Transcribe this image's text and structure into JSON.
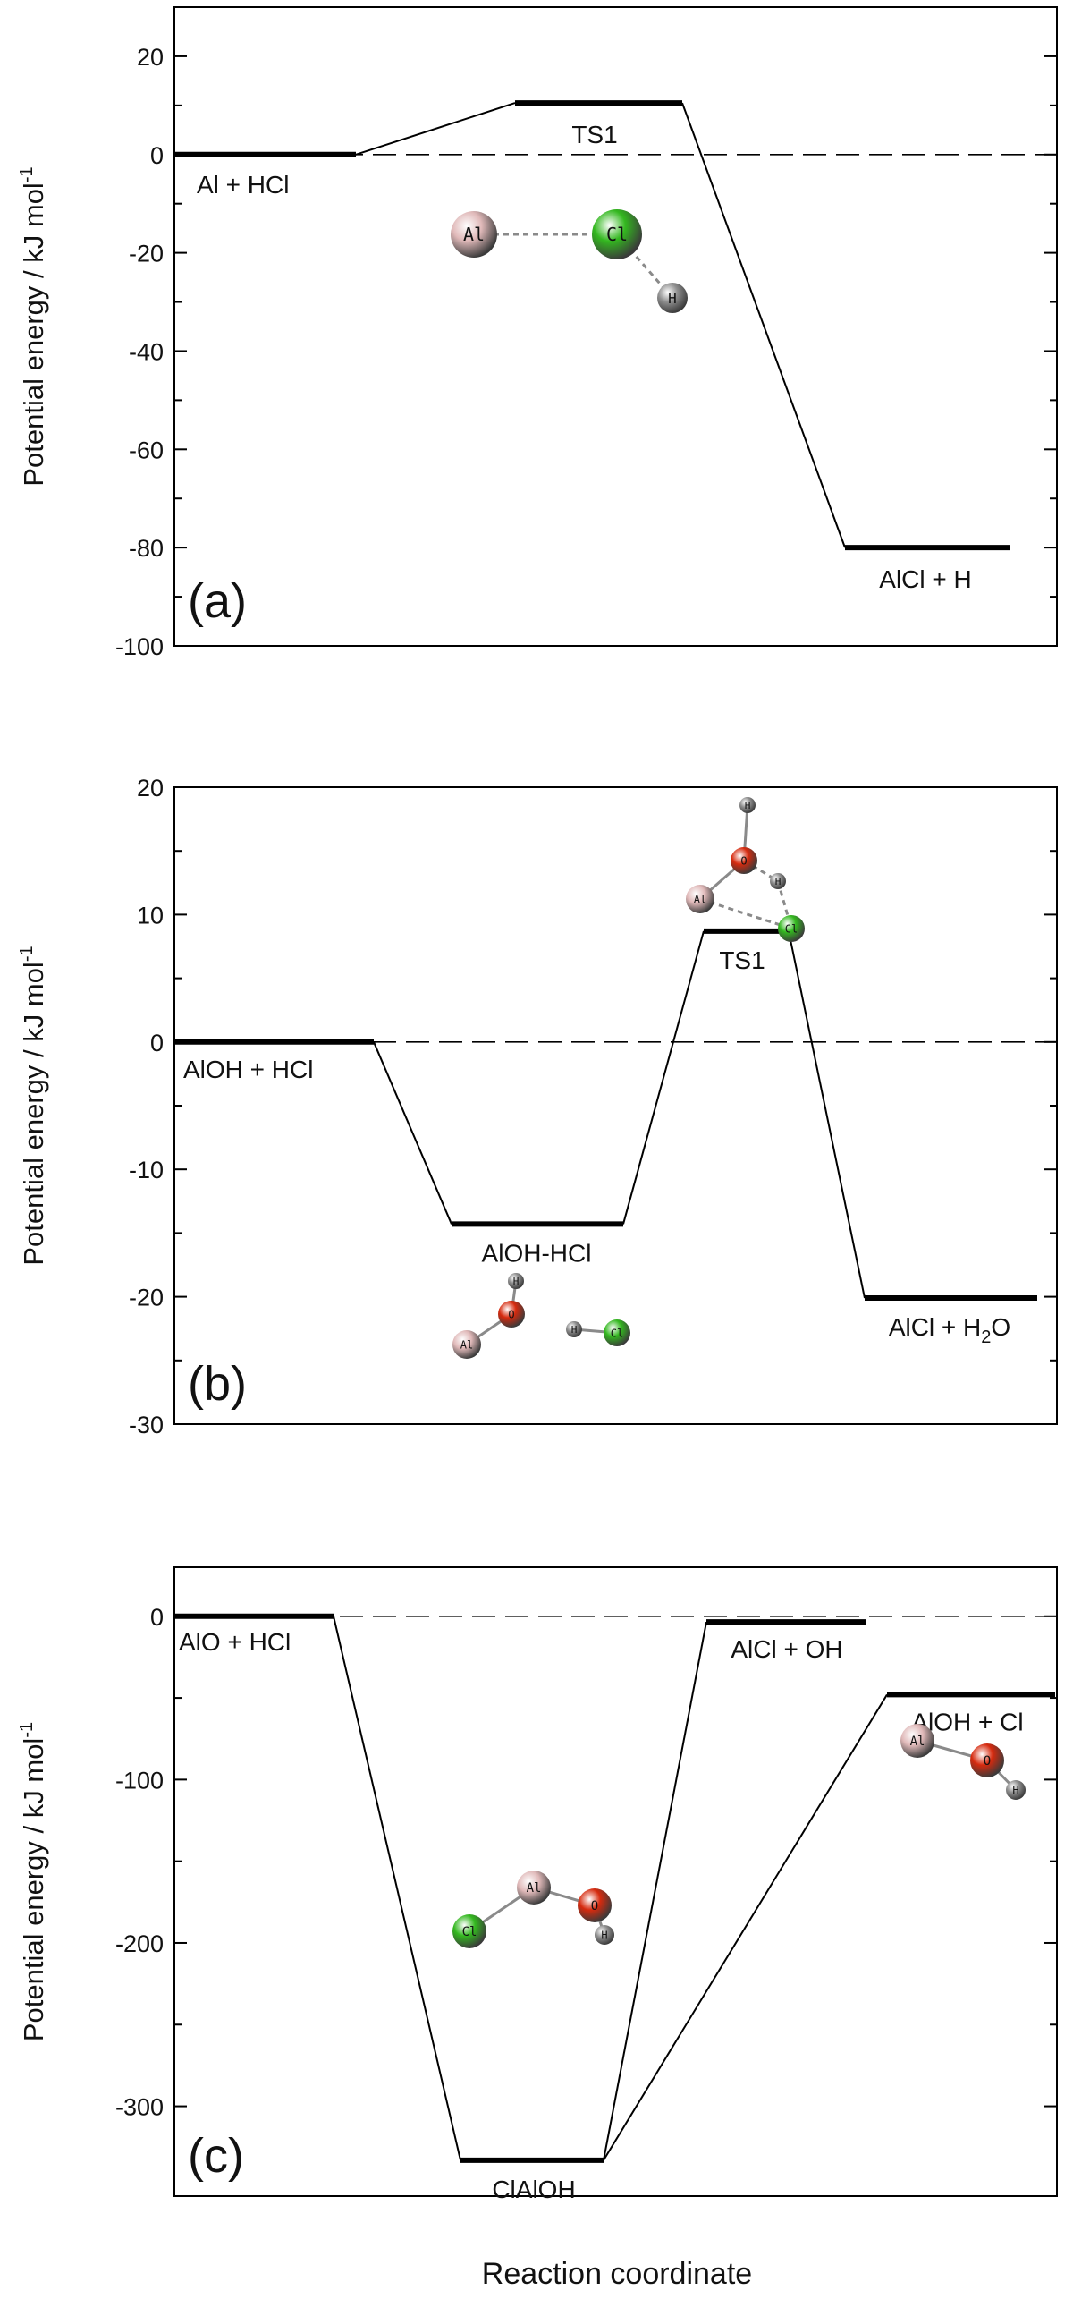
{
  "xlabel": "Reaction coordinate",
  "chart_data": [
    {
      "type": "line",
      "panel_label": "(a)",
      "ylabel": "Potential energy / kJ mol",
      "ylabel_sup": "-1",
      "ylim": [
        -100,
        30
      ],
      "yticks": [
        20,
        0,
        -20,
        -40,
        -60,
        -80,
        -100
      ],
      "levels": [
        {
          "label": "Al + HCl",
          "energy": 0
        },
        {
          "label": "TS1",
          "energy": 10.5
        },
        {
          "label": "AlCl + H",
          "energy": -80
        }
      ],
      "structures": [
        {
          "name": "ts1-structure",
          "atoms": [
            {
              "el": "Al",
              "label": "Al",
              "color": "#e0b9b9"
            },
            {
              "el": "Cl",
              "label": "Cl",
              "color": "#33b81f"
            },
            {
              "el": "H",
              "label": "H",
              "color": "#8f8f8f"
            }
          ]
        }
      ]
    },
    {
      "type": "line",
      "panel_label": "(b)",
      "ylabel": "Potential energy / kJ mol",
      "ylabel_sup": "-1",
      "ylim": [
        -30,
        20
      ],
      "yticks": [
        20,
        10,
        0,
        -10,
        -20,
        -30
      ],
      "levels": [
        {
          "label": "AlOH + HCl",
          "energy": 0
        },
        {
          "label": "AlOH-HCl",
          "energy": -14.3
        },
        {
          "label": "TS1",
          "energy": 8.7
        },
        {
          "label": "AlCl + H",
          "label_sub": "2",
          "label_tail": "O",
          "energy": -20.1
        }
      ],
      "structures": [
        {
          "name": "ts1-structure",
          "atoms": [
            {
              "el": "H",
              "label": "H",
              "color": "#8f8f8f"
            },
            {
              "el": "O",
              "label": "O",
              "color": "#d62a0e"
            },
            {
              "el": "H",
              "label": "H",
              "color": "#8f8f8f"
            },
            {
              "el": "Al",
              "label": "Al",
              "color": "#e0b9b9"
            },
            {
              "el": "Cl",
              "label": "Cl",
              "color": "#33b81f"
            }
          ]
        },
        {
          "name": "complex-structure",
          "atoms": [
            {
              "el": "H",
              "label": "H",
              "color": "#8f8f8f"
            },
            {
              "el": "O",
              "label": "O",
              "color": "#d62a0e"
            },
            {
              "el": "Al",
              "label": "Al",
              "color": "#e0b9b9"
            },
            {
              "el": "H",
              "label": "H",
              "color": "#8f8f8f"
            },
            {
              "el": "Cl",
              "label": "Cl",
              "color": "#33b81f"
            }
          ]
        }
      ]
    },
    {
      "type": "line",
      "panel_label": "(c)",
      "ylabel": "Potential energy / kJ mol",
      "ylabel_sup": "-1",
      "ylim": [
        -355,
        30
      ],
      "yticks": [
        0,
        -100,
        -200,
        -300
      ],
      "levels": [
        {
          "label": "AlO + HCl",
          "energy": 0
        },
        {
          "label": "ClAlOH",
          "energy": -333
        },
        {
          "label": "AlCl + OH",
          "energy": -3.5
        },
        {
          "label": "AlOH + Cl",
          "energy": -48
        }
      ],
      "structures": [
        {
          "name": "aloh-structure",
          "atoms": [
            {
              "el": "Al",
              "label": "Al",
              "color": "#e0b9b9"
            },
            {
              "el": "O",
              "label": "O",
              "color": "#d62a0e"
            },
            {
              "el": "H",
              "label": "H",
              "color": "#8f8f8f"
            }
          ]
        },
        {
          "name": "clalo-h-structure",
          "atoms": [
            {
              "el": "Cl",
              "label": "Cl",
              "color": "#33b81f"
            },
            {
              "el": "Al",
              "label": "Al",
              "color": "#e0b9b9"
            },
            {
              "el": "O",
              "label": "O",
              "color": "#d62a0e"
            },
            {
              "el": "H",
              "label": "H",
              "color": "#8f8f8f"
            }
          ]
        }
      ]
    }
  ]
}
